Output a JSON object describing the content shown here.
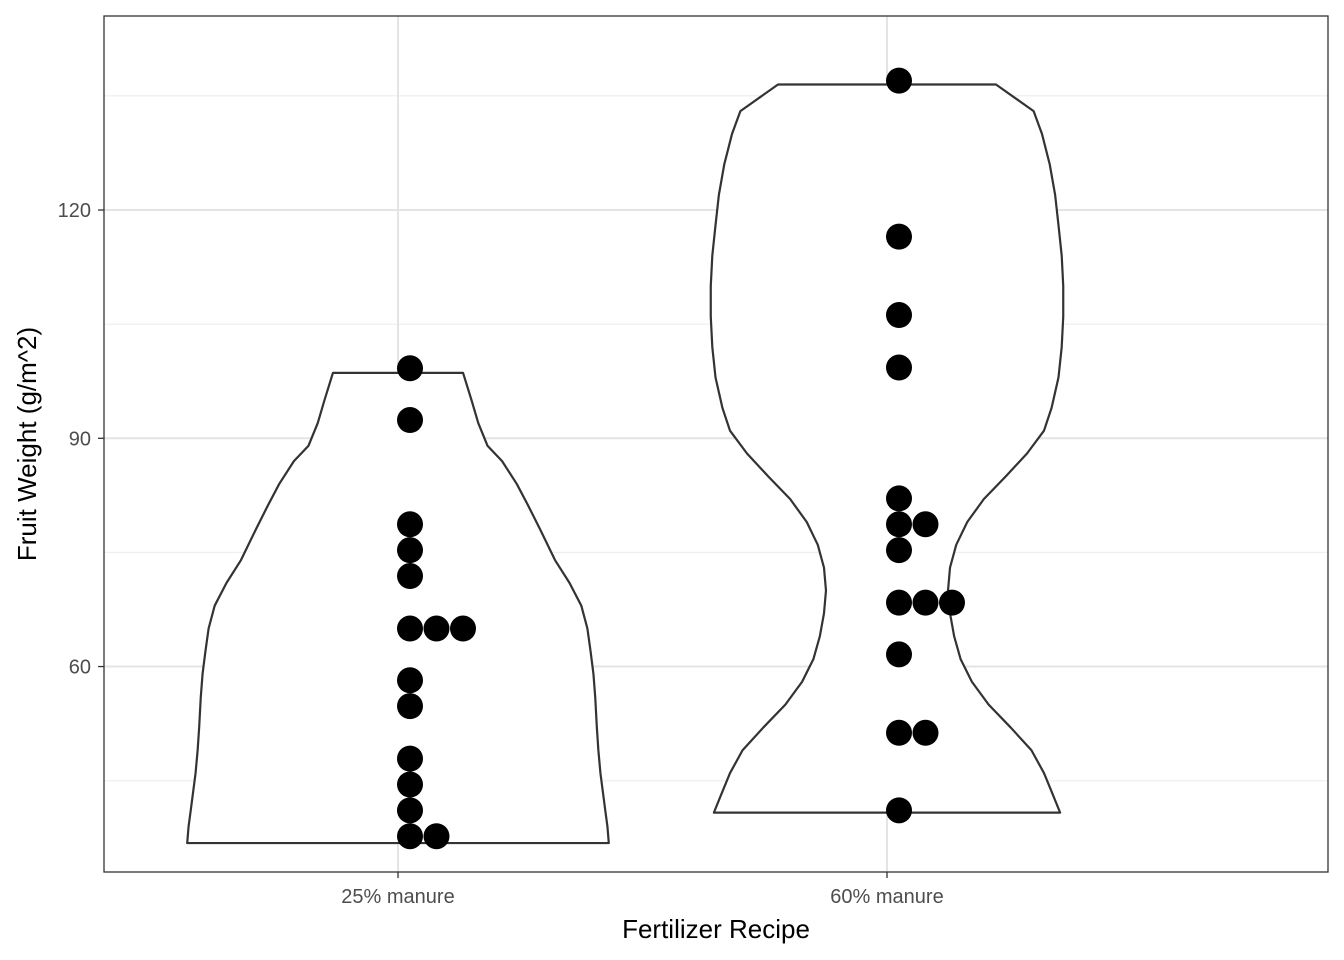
{
  "chart_data": {
    "type": "violin",
    "xlabel": "Fertilizer Recipe",
    "ylabel": "Fruit Weight (g/m^2)",
    "categories": [
      "25% manure",
      "60% manure"
    ],
    "yticks": [
      60,
      90,
      120
    ],
    "ylim": [
      33,
      145.5
    ],
    "grid": true,
    "series": [
      {
        "category": "25% manure",
        "range": [
          36.8,
          98.6
        ],
        "points": [
          {
            "y": 99.2,
            "stack": 0
          },
          {
            "y": 92.4,
            "stack": 0
          },
          {
            "y": 78.7,
            "stack": 0
          },
          {
            "y": 75.3,
            "stack": 0
          },
          {
            "y": 71.9,
            "stack": 0
          },
          {
            "y": 65.0,
            "stack": 0
          },
          {
            "y": 65.0,
            "stack": 1
          },
          {
            "y": 65.0,
            "stack": 2
          },
          {
            "y": 58.2,
            "stack": 0
          },
          {
            "y": 54.8,
            "stack": 0
          },
          {
            "y": 47.9,
            "stack": 0
          },
          {
            "y": 44.5,
            "stack": 0
          },
          {
            "y": 41.1,
            "stack": 0
          },
          {
            "y": 37.7,
            "stack": 0
          },
          {
            "y": 37.7,
            "stack": 1
          }
        ],
        "density": [
          [
            36.8,
            0.75
          ],
          [
            39,
            0.71
          ],
          [
            41,
            0.66
          ],
          [
            43,
            0.62
          ],
          [
            46,
            0.57
          ],
          [
            49,
            0.54
          ],
          [
            52,
            0.52
          ],
          [
            56,
            0.5
          ],
          [
            59,
            0.48
          ],
          [
            62,
            0.45
          ],
          [
            65,
            0.42
          ],
          [
            68,
            0.37
          ],
          [
            71,
            0.29
          ],
          [
            74,
            0.21
          ],
          [
            78,
            0.14
          ],
          [
            81,
            0.09
          ],
          [
            84,
            0.04
          ],
          [
            87,
            -0.02
          ],
          [
            89,
            -0.08
          ],
          [
            92,
            -0.12
          ],
          [
            95,
            -0.15
          ],
          [
            98.6,
            -0.19
          ]
        ]
      },
      {
        "category": "60% manure",
        "range": [
          40.8,
          136.5
        ],
        "points": [
          {
            "y": 137.0,
            "stack": 0
          },
          {
            "y": 116.5,
            "stack": 0
          },
          {
            "y": 106.2,
            "stack": 0
          },
          {
            "y": 99.3,
            "stack": 0
          },
          {
            "y": 82.1,
            "stack": 0
          },
          {
            "y": 78.7,
            "stack": 0
          },
          {
            "y": 78.7,
            "stack": 1
          },
          {
            "y": 75.3,
            "stack": 0
          },
          {
            "y": 68.4,
            "stack": 0
          },
          {
            "y": 68.4,
            "stack": 1
          },
          {
            "y": 68.4,
            "stack": 2
          },
          {
            "y": 61.6,
            "stack": 0
          },
          {
            "y": 51.3,
            "stack": 0
          },
          {
            "y": 51.3,
            "stack": 1
          },
          {
            "y": 41.1,
            "stack": 0
          }
        ],
        "density": [
          [
            40.8,
            0.3
          ],
          [
            43,
            0.26
          ],
          [
            46,
            0.21
          ],
          [
            49,
            0.15
          ],
          [
            52,
            0.06
          ],
          [
            55,
            -0.03
          ],
          [
            58,
            -0.1
          ],
          [
            61,
            -0.15
          ],
          [
            64,
            -0.18
          ],
          [
            67,
            -0.2
          ],
          [
            70,
            -0.21
          ],
          [
            73,
            -0.2
          ],
          [
            76,
            -0.17
          ],
          [
            79,
            -0.12
          ],
          [
            82,
            -0.05
          ],
          [
            85,
            0.04
          ],
          [
            88,
            0.13
          ],
          [
            91,
            0.21
          ],
          [
            94,
            0.25
          ],
          [
            98,
            0.29
          ],
          [
            102,
            0.31
          ],
          [
            106,
            0.32
          ],
          [
            110,
            0.32
          ],
          [
            114,
            0.31
          ],
          [
            118,
            0.29
          ],
          [
            122,
            0.27
          ],
          [
            126,
            0.24
          ],
          [
            130,
            0.2
          ],
          [
            133,
            0.16
          ],
          [
            136.5,
            0.0
          ]
        ]
      }
    ]
  }
}
